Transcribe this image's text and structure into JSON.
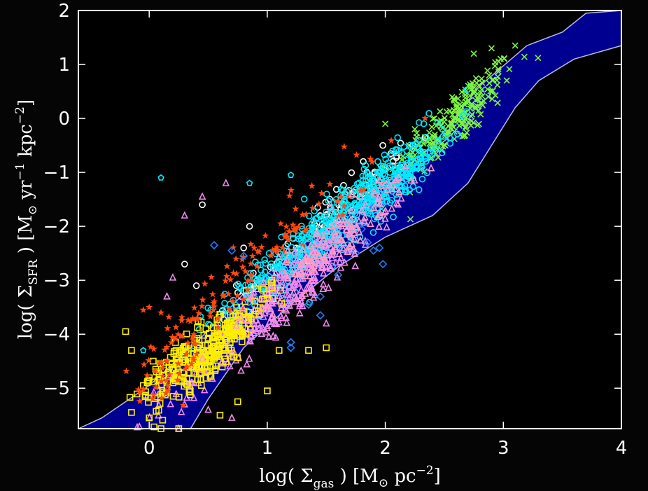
{
  "chart_data": {
    "type": "scatter",
    "xlim": [
      -0.6,
      4.0
    ],
    "ylim": [
      -5.75,
      2.0
    ],
    "x_ticks": [
      0,
      1,
      2,
      3,
      4
    ],
    "y_ticks": [
      2,
      1,
      0,
      -1,
      -2,
      -3,
      -4,
      -5
    ],
    "x_tick_labels": [
      "0",
      "1",
      "2",
      "3",
      "4"
    ],
    "y_tick_labels": [
      "2",
      "1",
      "0",
      "−1",
      "−2",
      "−3",
      "−4",
      "−5"
    ],
    "xlabel": {
      "pre": "log( Σ",
      "sub": "gas",
      "post": " )  [M",
      "sun": "⊙",
      "post2": " pc",
      "sup": "−2",
      "end": "]"
    },
    "ylabel": {
      "pre": "log( Σ",
      "sub": "SFR",
      "post": " )  [M",
      "sun": "⊙",
      "post2": " yr",
      "sup1": "−1",
      "post3": " kpc",
      "sup2": "−2",
      "end": "]"
    },
    "band": {
      "upper": [
        [
          -0.6,
          -5.75
        ],
        [
          -0.4,
          -5.55
        ],
        [
          0.0,
          -4.95
        ],
        [
          0.4,
          -4.15
        ],
        [
          0.8,
          -3.25
        ],
        [
          1.2,
          -2.5
        ],
        [
          1.6,
          -1.85
        ],
        [
          2.0,
          -1.2
        ],
        [
          2.4,
          -0.5
        ],
        [
          2.8,
          0.6
        ],
        [
          3.2,
          1.35
        ],
        [
          3.5,
          1.6
        ],
        [
          3.7,
          1.95
        ],
        [
          4.0,
          2.0
        ]
      ],
      "lower": [
        [
          4.0,
          1.35
        ],
        [
          3.6,
          1.1
        ],
        [
          3.3,
          0.7
        ],
        [
          3.1,
          0.2
        ],
        [
          2.9,
          -0.5
        ],
        [
          2.7,
          -1.2
        ],
        [
          2.4,
          -1.8
        ],
        [
          2.0,
          -2.2
        ],
        [
          1.6,
          -2.75
        ],
        [
          1.2,
          -3.45
        ],
        [
          0.8,
          -4.25
        ],
        [
          0.5,
          -5.2
        ],
        [
          0.35,
          -5.75
        ]
      ],
      "fill": "#000090",
      "edge": "#b8b8e8"
    },
    "series": [
      {
        "marker": "x",
        "color": "#7cf542",
        "clusters": [
          [
            2.6,
            0.0,
            0.25,
            0.45,
            220
          ]
        ],
        "points": [
          [
            2.9,
            1.3
          ],
          [
            3.1,
            1.35
          ],
          [
            2.75,
            1.2
          ],
          [
            2.25,
            -0.2
          ],
          [
            2.2,
            -0.5
          ],
          [
            2.15,
            -0.7
          ],
          [
            2.0,
            -0.1
          ]
        ]
      },
      {
        "marker": "o",
        "color": "#ffffff",
        "clusters": [
          [
            1.5,
            -1.9,
            0.35,
            0.35,
            90
          ]
        ],
        "points": [
          [
            0.45,
            -1.6
          ],
          [
            0.3,
            -2.7
          ],
          [
            0.8,
            -2.4
          ],
          [
            0.85,
            -2.0
          ],
          [
            0.4,
            -3.1
          ]
        ]
      },
      {
        "marker": "o",
        "color": "#00e8ff",
        "clusters": [
          [
            1.55,
            -2.0,
            0.38,
            0.45,
            420
          ],
          [
            2.1,
            -1.2,
            0.2,
            0.3,
            120
          ],
          [
            0.9,
            -3.0,
            0.25,
            0.35,
            60
          ]
        ],
        "points": []
      },
      {
        "marker": "pentagon",
        "color": "#00e8ff",
        "clusters": [],
        "points": [
          [
            0.1,
            -1.1
          ],
          [
            1.2,
            -1.05
          ],
          [
            0.85,
            -1.2
          ],
          [
            -0.05,
            -4.3
          ]
        ]
      },
      {
        "marker": "triangle",
        "color": "#ee88ee",
        "clusters": [
          [
            1.1,
            -3.4,
            0.45,
            0.5,
            260
          ]
        ],
        "points": [
          [
            0.45,
            -1.45
          ],
          [
            0.65,
            -1.2
          ],
          [
            0.3,
            -1.8
          ],
          [
            0.2,
            -2.95
          ],
          [
            0.15,
            -3.3
          ],
          [
            1.5,
            -3.8
          ],
          [
            0.7,
            -5.55
          ],
          [
            0.5,
            -5.4
          ],
          [
            0.3,
            -5.3
          ],
          [
            0.25,
            -5.75
          ]
        ]
      },
      {
        "marker": "square",
        "color": "#ffee00",
        "clusters": [
          [
            0.55,
            -4.25,
            0.25,
            0.35,
            260
          ],
          [
            0.2,
            -4.5,
            0.15,
            0.35,
            60
          ]
        ],
        "points": [
          [
            -0.2,
            -3.95
          ],
          [
            -0.15,
            -4.3
          ],
          [
            -0.05,
            -4.95
          ],
          [
            -0.15,
            -5.45
          ],
          [
            0.0,
            -5.55
          ],
          [
            0.1,
            -5.75
          ],
          [
            0.25,
            -5.75
          ],
          [
            0.6,
            -5.5
          ],
          [
            0.75,
            -5.25
          ],
          [
            1.0,
            -5.05
          ],
          [
            1.1,
            -4.3
          ],
          [
            1.35,
            -4.3
          ],
          [
            1.5,
            -4.25
          ]
        ]
      },
      {
        "marker": "star",
        "color": "#ff4a12",
        "clusters": [
          [
            0.9,
            -2.7,
            0.5,
            0.5,
            120
          ],
          [
            0.2,
            -4.6,
            0.15,
            0.6,
            40
          ]
        ],
        "points": [
          [
            0.0,
            -3.5
          ],
          [
            -0.05,
            -3.55
          ],
          [
            0.1,
            -3.6
          ]
        ]
      },
      {
        "marker": "diamond",
        "color": "#1e7bff",
        "clusters": [],
        "points": [
          [
            1.8,
            -2.05
          ],
          [
            1.85,
            -2.3
          ],
          [
            1.95,
            -2.4
          ],
          [
            1.98,
            -2.7
          ],
          [
            1.9,
            -2.45
          ],
          [
            1.7,
            -2.45
          ],
          [
            1.75,
            -2.5
          ],
          [
            1.6,
            -2.9
          ],
          [
            1.45,
            -3.3
          ],
          [
            1.35,
            -3.45
          ],
          [
            1.2,
            -4.15
          ],
          [
            1.2,
            -4.25
          ],
          [
            1.45,
            -3.65
          ],
          [
            0.55,
            -2.35
          ],
          [
            0.7,
            -2.45
          ],
          [
            0.8,
            -2.55
          ],
          [
            1.9,
            -1.65
          ],
          [
            1.8,
            -1.95
          ]
        ]
      },
      {
        "marker": "triangle",
        "color": "#ff99cc",
        "clusters": [
          [
            1.5,
            -2.4,
            0.35,
            0.4,
            160
          ]
        ],
        "points": []
      }
    ]
  }
}
